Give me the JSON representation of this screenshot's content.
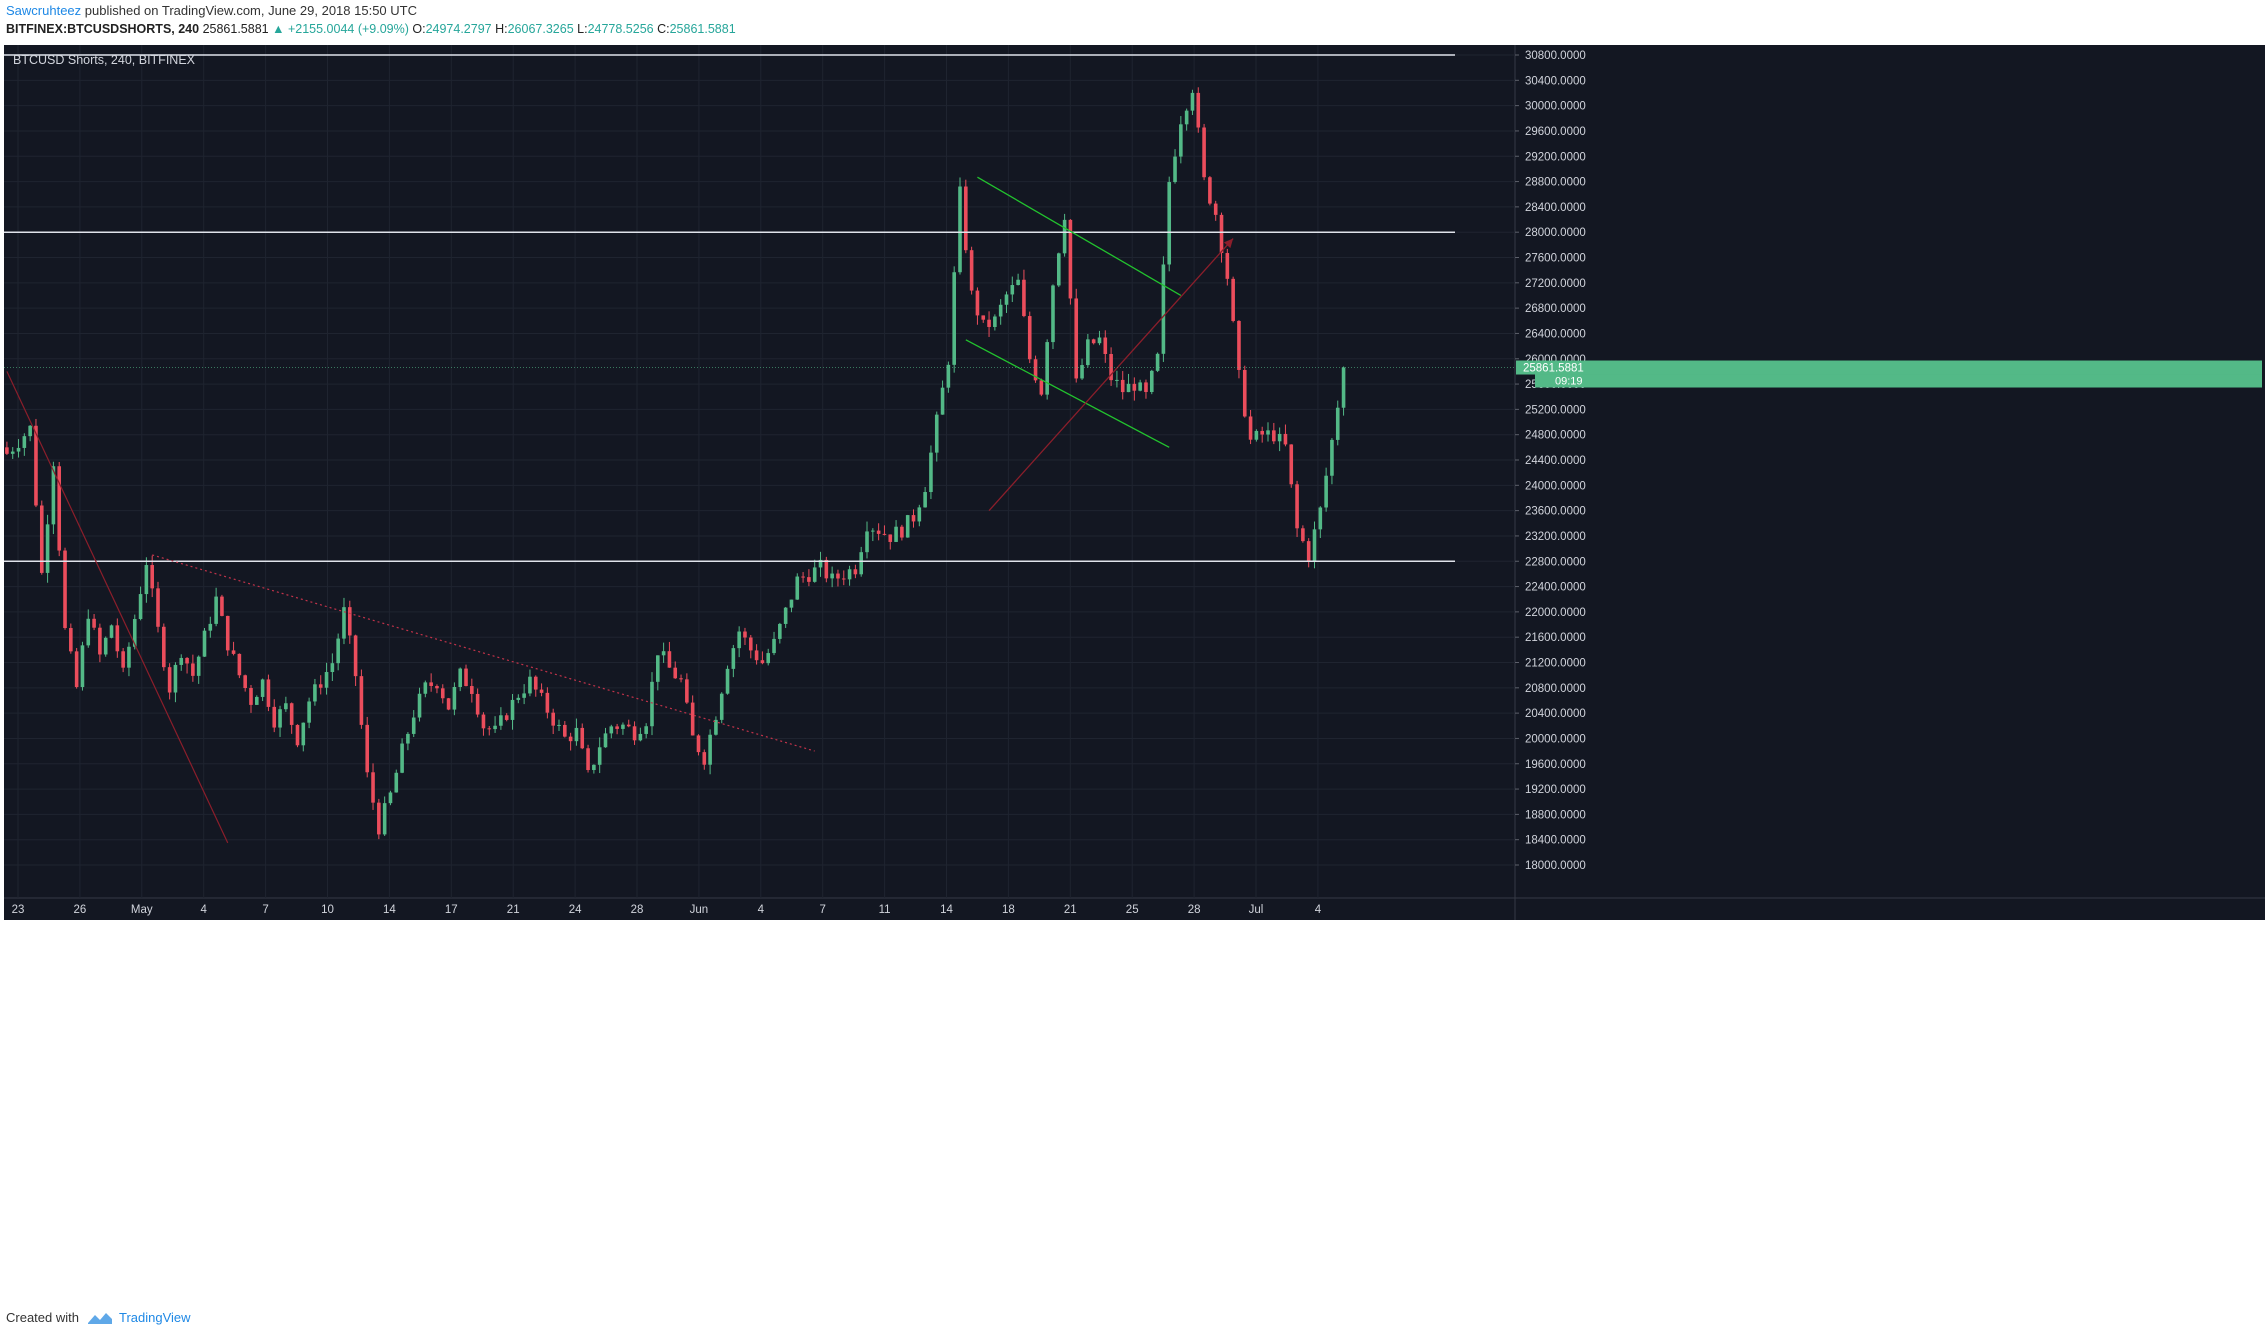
{
  "header": {
    "author": "Sawcruhteez",
    "published_text": "published on TradingView.com, June 29, 2018 15:50 UTC",
    "symbol_interval": "BITFINEX:BTCUSDSHORTS, 240",
    "price": "25861.5881",
    "change": "▲ +2155.0044 (+9.09%)",
    "o_label": "O:",
    "o_value": "24974.2797",
    "h_label": "H:",
    "h_value": "26067.3265",
    "l_label": "L:",
    "l_value": "24778.5256",
    "c_label": "C:",
    "c_value": "25861.5881"
  },
  "legend": {
    "title": "BTCUSD Shorts, 240, BITFINEX"
  },
  "footer": {
    "created_with": "Created with",
    "brand": "TradingView",
    "logo_icon": "tradingview-logo-icon"
  },
  "colors": {
    "background": "#131722",
    "grid": "#1f2430",
    "up": "#53b987",
    "down": "#eb4d5c",
    "level_line": "#e0e3eb",
    "channel": "#22c32e",
    "trend_red": "#8b1e2b",
    "price_tag": "#53b987"
  },
  "chart_data": {
    "type": "candlestick",
    "title": "BTCUSD Shorts, 240, BITFINEX",
    "x_tick_labels": [
      "23",
      "26",
      "May",
      "4",
      "7",
      "10",
      "14",
      "17",
      "21",
      "24",
      "28",
      "Jun",
      "4",
      "7",
      "11",
      "14",
      "18",
      "21",
      "25",
      "28",
      "Jul",
      "4"
    ],
    "y_tick_labels": [
      "18000.0000",
      "18400.0000",
      "18800.0000",
      "19200.0000",
      "19600.0000",
      "20000.0000",
      "20400.0000",
      "20800.0000",
      "21200.0000",
      "21600.0000",
      "22000.0000",
      "22400.0000",
      "22800.0000",
      "23200.0000",
      "23600.0000",
      "24000.0000",
      "24400.0000",
      "24800.0000",
      "25200.0000",
      "25600.0000",
      "26000.0000",
      "26400.0000",
      "26800.0000",
      "27200.0000",
      "27600.0000",
      "28000.0000",
      "28400.0000",
      "28800.0000",
      "29200.0000",
      "29600.0000",
      "30000.0000",
      "30400.0000",
      "30800.0000"
    ],
    "ylim": [
      17800,
      31100
    ],
    "last_price": 25861.5881,
    "last_price_label": "25861.5881",
    "countdown_label": "09:19",
    "horizontal_levels": [
      30800,
      28000,
      22800
    ],
    "close_path": [
      [
        0,
        24500
      ],
      [
        4,
        24900
      ],
      [
        6,
        22600
      ],
      [
        8,
        24400
      ],
      [
        10,
        21700
      ],
      [
        12,
        20800
      ],
      [
        14,
        22000
      ],
      [
        16,
        21300
      ],
      [
        18,
        21800
      ],
      [
        20,
        21000
      ],
      [
        22,
        21900
      ],
      [
        24,
        22800
      ],
      [
        26,
        21700
      ],
      [
        28,
        20800
      ],
      [
        30,
        21400
      ],
      [
        32,
        21000
      ],
      [
        34,
        21600
      ],
      [
        36,
        22200
      ],
      [
        38,
        21500
      ],
      [
        40,
        21000
      ],
      [
        42,
        20600
      ],
      [
        44,
        20900
      ],
      [
        46,
        20300
      ],
      [
        48,
        20500
      ],
      [
        50,
        20000
      ],
      [
        52,
        20600
      ],
      [
        54,
        20900
      ],
      [
        56,
        21200
      ],
      [
        58,
        22000
      ],
      [
        60,
        21000
      ],
      [
        62,
        19400
      ],
      [
        64,
        18600
      ],
      [
        66,
        19100
      ],
      [
        68,
        19800
      ],
      [
        70,
        20400
      ],
      [
        72,
        20800
      ],
      [
        74,
        20900
      ],
      [
        76,
        20500
      ],
      [
        78,
        21000
      ],
      [
        80,
        20800
      ],
      [
        82,
        20200
      ],
      [
        84,
        20100
      ],
      [
        86,
        20400
      ],
      [
        88,
        20700
      ],
      [
        90,
        20900
      ],
      [
        92,
        20600
      ],
      [
        94,
        20300
      ],
      [
        96,
        20000
      ],
      [
        98,
        20100
      ],
      [
        100,
        19400
      ],
      [
        102,
        19900
      ],
      [
        104,
        20200
      ],
      [
        106,
        20200
      ],
      [
        108,
        20100
      ],
      [
        110,
        20300
      ],
      [
        112,
        21400
      ],
      [
        114,
        21100
      ],
      [
        116,
        20900
      ],
      [
        118,
        20000
      ],
      [
        120,
        19700
      ],
      [
        122,
        20400
      ],
      [
        124,
        21200
      ],
      [
        126,
        21700
      ],
      [
        128,
        21400
      ],
      [
        130,
        21200
      ],
      [
        132,
        21500
      ],
      [
        134,
        22000
      ],
      [
        136,
        22500
      ],
      [
        138,
        22600
      ],
      [
        140,
        22700
      ],
      [
        142,
        22500
      ],
      [
        144,
        22600
      ],
      [
        146,
        22700
      ],
      [
        148,
        23400
      ],
      [
        150,
        23300
      ],
      [
        152,
        23200
      ],
      [
        154,
        23300
      ],
      [
        156,
        23500
      ],
      [
        158,
        24000
      ],
      [
        160,
        25000
      ],
      [
        162,
        26000
      ],
      [
        164,
        28600
      ],
      [
        166,
        27000
      ],
      [
        168,
        26500
      ],
      [
        170,
        26600
      ],
      [
        172,
        27000
      ],
      [
        174,
        27200
      ],
      [
        176,
        26000
      ],
      [
        178,
        25500
      ],
      [
        180,
        27200
      ],
      [
        182,
        28300
      ],
      [
        184,
        25600
      ],
      [
        186,
        26200
      ],
      [
        188,
        26300
      ],
      [
        190,
        25700
      ],
      [
        192,
        25500
      ],
      [
        194,
        25600
      ],
      [
        196,
        25400
      ],
      [
        198,
        26000
      ],
      [
        200,
        28800
      ],
      [
        202,
        29800
      ],
      [
        204,
        30300
      ],
      [
        206,
        28800
      ],
      [
        208,
        28300
      ],
      [
        210,
        27300
      ],
      [
        212,
        25700
      ],
      [
        214,
        24700
      ],
      [
        216,
        24800
      ],
      [
        218,
        24800
      ],
      [
        220,
        24600
      ],
      [
        222,
        23300
      ],
      [
        224,
        22900
      ],
      [
        226,
        23600
      ],
      [
        228,
        24700
      ],
      [
        230,
        25860
      ]
    ],
    "bars_total": 260,
    "trendlines": [
      {
        "kind": "channel-upper",
        "from": [
          167,
          28870
        ],
        "to": [
          202,
          27000
        ]
      },
      {
        "kind": "channel-lower",
        "from": [
          165,
          26300
        ],
        "to": [
          200,
          24600
        ]
      },
      {
        "kind": "dotted-resistance",
        "from": [
          25,
          22900
        ],
        "to": [
          139,
          19800
        ]
      },
      {
        "kind": "red-diagonal",
        "from": [
          0,
          25800
        ],
        "to": [
          38,
          18350
        ]
      },
      {
        "kind": "red-arrow",
        "from": [
          169,
          23600
        ],
        "to": [
          211,
          27900
        ]
      }
    ]
  }
}
